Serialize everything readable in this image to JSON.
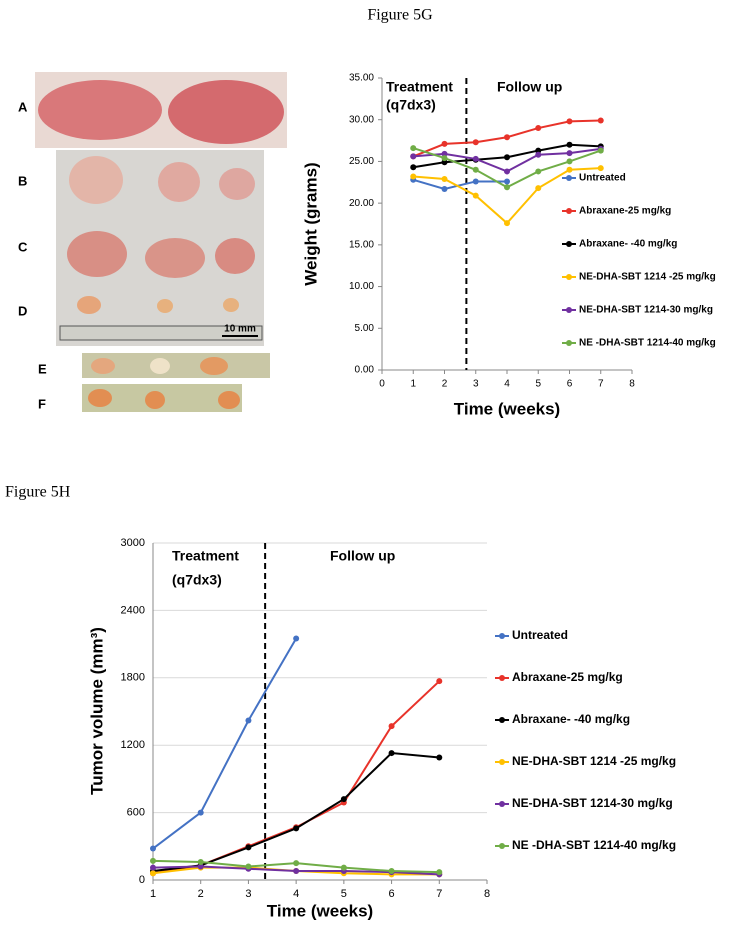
{
  "captions": [
    "Figure 5G",
    "Figure 5H"
  ],
  "photo": {
    "labels": [
      "A",
      "B",
      "C",
      "D",
      "E",
      "F"
    ],
    "scale_bar": "10 mm"
  },
  "chart_data": [
    {
      "type": "line",
      "y_label": "Weight (grams)",
      "x_label": "Time (weeks)",
      "annotations": [
        "Treatment",
        "(q7dx3)",
        "Follow up"
      ],
      "vline": 2.7,
      "grid": false,
      "x": [
        1,
        2,
        3,
        4,
        5,
        6,
        7
      ],
      "xlim": [
        0,
        8
      ],
      "xticks": [
        0,
        1,
        2,
        3,
        4,
        5,
        6,
        7,
        8
      ],
      "ylim": [
        0,
        35
      ],
      "yticks": [
        {
          "value": 0,
          "label": "0.00"
        },
        {
          "value": 5,
          "label": "5.00"
        },
        {
          "value": 10,
          "label": "10.00"
        },
        {
          "value": 15,
          "label": "15.00"
        },
        {
          "value": 20,
          "label": "20.00"
        },
        {
          "value": 25,
          "label": "25.00"
        },
        {
          "value": 30,
          "label": "30.00"
        },
        {
          "value": 35,
          "label": "35.00"
        }
      ],
      "series": [
        {
          "name": "Untreated",
          "color": "#4472c4",
          "values": [
            22.8,
            21.7,
            22.6,
            22.6,
            null,
            null,
            null
          ]
        },
        {
          "name": "Abraxane-25 mg/kg",
          "color": "#e8332a",
          "values": [
            25.6,
            27.1,
            27.3,
            27.9,
            29.0,
            29.8,
            29.9
          ]
        },
        {
          "name": "Abraxane- -40 mg/kg",
          "color": "#000000",
          "values": [
            24.3,
            24.9,
            25.2,
            25.5,
            26.3,
            27.0,
            26.8
          ]
        },
        {
          "name": "NE-DHA-SBT 1214 -25 mg/kg",
          "color": "#ffc000",
          "values": [
            23.2,
            22.9,
            20.9,
            17.6,
            21.8,
            24.0,
            24.2
          ]
        },
        {
          "name": "NE-DHA-SBT 1214-30 mg/kg",
          "color": "#7030a0",
          "values": [
            25.6,
            25.9,
            25.3,
            23.8,
            25.8,
            26.0,
            26.5
          ]
        },
        {
          "name": "NE -DHA-SBT 1214-40 mg/kg",
          "color": "#70ad47",
          "values": [
            26.6,
            25.4,
            24.0,
            21.9,
            23.8,
            25.0,
            26.3
          ]
        }
      ]
    },
    {
      "type": "line",
      "y_label": "Tumor volume (mm³)",
      "x_label": "Time (weeks)",
      "annotations": [
        "Treatment",
        "(q7dx3)",
        "Follow up"
      ],
      "vline": 3.35,
      "grid": true,
      "x": [
        1,
        2,
        3,
        4,
        5,
        6,
        7
      ],
      "xlim": [
        1,
        8
      ],
      "xticks": [
        1,
        2,
        3,
        4,
        5,
        6,
        7,
        8
      ],
      "ylim": [
        0,
        3000
      ],
      "yticks": [
        0,
        600,
        1200,
        1800,
        2400,
        3000
      ],
      "series": [
        {
          "name": "Untreated",
          "color": "#4472c4",
          "values": [
            280,
            600,
            1420,
            2150,
            null,
            null,
            null
          ]
        },
        {
          "name": "Abraxane-25 mg/kg",
          "color": "#e8332a",
          "values": [
            60,
            130,
            300,
            470,
            690,
            1370,
            1770
          ]
        },
        {
          "name": "Abraxane- -40 mg/kg",
          "color": "#000000",
          "values": [
            80,
            130,
            290,
            460,
            720,
            1130,
            1090
          ]
        },
        {
          "name": "NE-DHA-SBT 1214 -25 mg/kg",
          "color": "#ffc000",
          "values": [
            60,
            110,
            110,
            80,
            60,
            50,
            50
          ]
        },
        {
          "name": "NE-DHA-SBT 1214-30 mg/kg",
          "color": "#7030a0",
          "values": [
            110,
            120,
            100,
            80,
            80,
            70,
            50
          ]
        },
        {
          "name": "NE -DHA-SBT 1214-40 mg/kg",
          "color": "#70ad47",
          "values": [
            170,
            160,
            120,
            150,
            110,
            80,
            70
          ]
        }
      ]
    }
  ]
}
